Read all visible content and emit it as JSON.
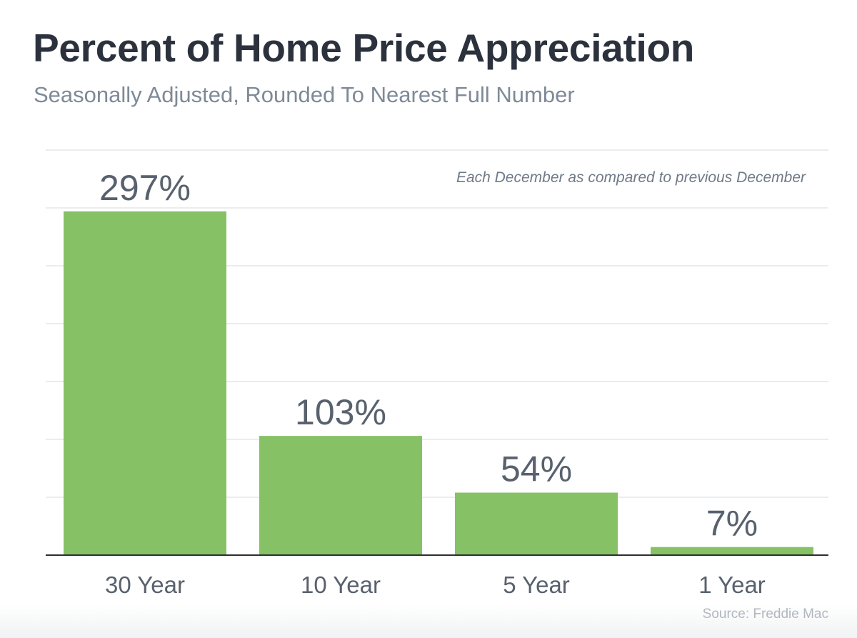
{
  "chart_data": {
    "type": "bar",
    "title": "Percent of Home Price Appreciation",
    "subtitle": "Seasonally Adjusted, Rounded To Nearest Full Number",
    "annotation": "Each December as compared to previous December",
    "categories": [
      "30 Year",
      "10 Year",
      "5 Year",
      "1 Year"
    ],
    "values": [
      297,
      103,
      54,
      7
    ],
    "value_labels": [
      "297%",
      "103%",
      "54%",
      "7%"
    ],
    "xlabel": "",
    "ylabel": "",
    "ylim": [
      0,
      350
    ],
    "grid": true,
    "bar_color": "#86c166",
    "source": "Source: Freddie Mac"
  }
}
